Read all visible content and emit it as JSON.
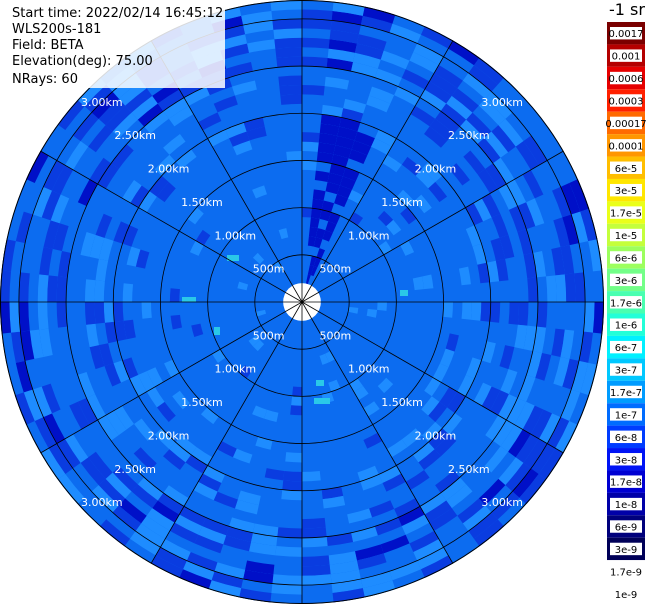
{
  "header": {
    "start_time": "Start time: 2022/02/14 16:45:12",
    "instrument": "WLS200s-181",
    "field": "Field: BETA",
    "elevation": "Elevation(deg): 75.00",
    "nrays": "NRays: 60"
  },
  "chart_data": {
    "type": "heatmap",
    "projection": "polar-ppi",
    "field": "BETA",
    "elevation_deg": 75.0,
    "n_rays": 60,
    "range_rings_km": [
      0.5,
      1.0,
      1.5,
      2.0,
      2.5,
      3.0
    ],
    "ring_labels": [
      "500m",
      "1.00km",
      "1.50km",
      "2.00km",
      "2.50km",
      "3.00km"
    ],
    "max_range_km": 3.2,
    "spokes_deg": [
      0,
      30,
      60,
      90,
      120,
      150,
      180,
      210,
      240,
      270,
      300,
      330
    ],
    "grid": true,
    "colorbar": {
      "title": "-1 sr",
      "placement": "right",
      "labels": [
        "0.0017",
        "0.001",
        "0.0006",
        "0.0003",
        "0.00017",
        "0.0001",
        "6e-5",
        "3e-5",
        "1.7e-5",
        "1e-5",
        "6e-6",
        "3e-6",
        "1.7e-6",
        "1e-6",
        "6e-7",
        "3e-7",
        "1.7e-7",
        "1e-7",
        "6e-8",
        "3e-8",
        "1.7e-8",
        "1e-8",
        "6e-9",
        "3e-9",
        "1.7e-9",
        "1e-9"
      ],
      "colors": [
        "#7a0000",
        "#b40000",
        "#e60000",
        "#ff2000",
        "#ff6a00",
        "#ff9600",
        "#ffbe00",
        "#ffe600",
        "#eaff1a",
        "#c4ff3c",
        "#9cff5e",
        "#73ff88",
        "#49ffb0",
        "#22ffd8",
        "#00f0ff",
        "#00c8ff",
        "#009cff",
        "#006cff",
        "#003cff",
        "#0014f5",
        "#0000d2",
        "#0000a8",
        "#00007c",
        "#000058",
        "#ffffff",
        "#ffffff"
      ]
    },
    "dominant_range": "1e-8 to 6e-8",
    "colors": {
      "bg": "#0c6cf0",
      "lighter": "#1e8cff",
      "darker": "#0a3ce0",
      "darkest": "#0010c8",
      "cyan": "#2ac8e8"
    }
  }
}
